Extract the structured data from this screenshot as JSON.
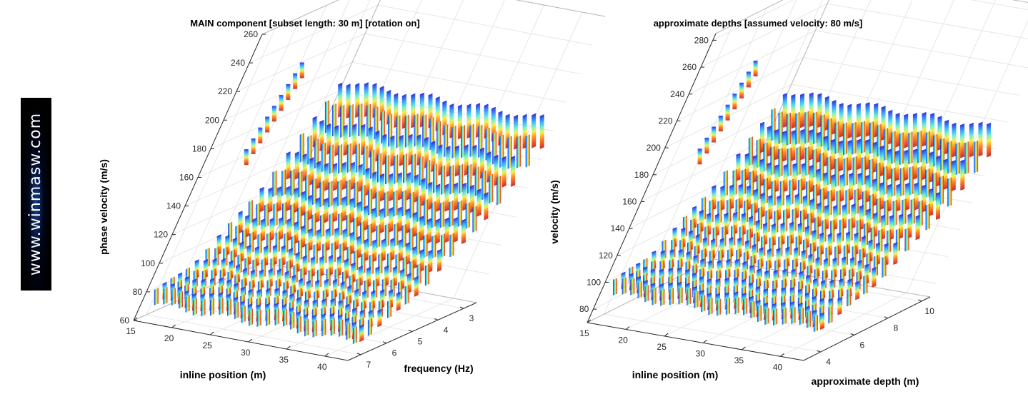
{
  "logo": {
    "text": "www.winmasw.com"
  },
  "chart_data": [
    {
      "type": "surface",
      "title": "MAIN component [subset length: 30 m] [rotation on]",
      "xlabel": "inline position (m)",
      "ylabel": "phase velocity (m/s)",
      "zlabel": "frequency (Hz)",
      "x_ticks": [
        15,
        20,
        25,
        30,
        35,
        40
      ],
      "y_ticks": [
        60,
        80,
        100,
        120,
        140,
        160,
        180,
        200,
        220,
        240,
        260
      ],
      "z_ticks": [
        7,
        6,
        5,
        4,
        3
      ],
      "xlim": [
        15,
        43
      ],
      "ylim": [
        60,
        260
      ],
      "zlim": [
        2.5,
        7.5
      ],
      "colormap": "jet"
    },
    {
      "type": "surface",
      "title": "approximate depths [assumed velocity: 80 m/s]",
      "xlabel": "inline position (m)",
      "ylabel": "velocity (m/s)",
      "zlabel": "approximate depth (m)",
      "x_ticks": [
        15,
        20,
        25,
        30,
        35,
        40
      ],
      "y_ticks": [
        80,
        100,
        120,
        140,
        160,
        180,
        200,
        220,
        240,
        260,
        280
      ],
      "z_ticks": [
        4,
        6,
        8,
        10
      ],
      "xlim": [
        15,
        43
      ],
      "ylim": [
        70,
        285
      ],
      "zlim": [
        3,
        10.5
      ],
      "colormap": "jet"
    }
  ]
}
